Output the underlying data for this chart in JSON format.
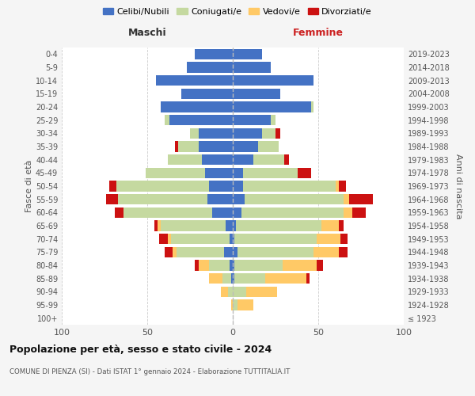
{
  "age_groups": [
    "100+",
    "95-99",
    "90-94",
    "85-89",
    "80-84",
    "75-79",
    "70-74",
    "65-69",
    "60-64",
    "55-59",
    "50-54",
    "45-49",
    "40-44",
    "35-39",
    "30-34",
    "25-29",
    "20-24",
    "15-19",
    "10-14",
    "5-9",
    "0-4"
  ],
  "birth_years": [
    "≤ 1923",
    "1924-1928",
    "1929-1933",
    "1934-1938",
    "1939-1943",
    "1944-1948",
    "1949-1953",
    "1954-1958",
    "1959-1963",
    "1964-1968",
    "1969-1973",
    "1974-1978",
    "1979-1983",
    "1984-1988",
    "1989-1993",
    "1994-1998",
    "1999-2003",
    "2004-2008",
    "2009-2013",
    "2014-2018",
    "2019-2023"
  ],
  "colors": {
    "celibi": "#4472c4",
    "coniugati": "#c5d9a0",
    "vedovi": "#ffc966",
    "divorziati": "#cc1111"
  },
  "maschi": {
    "celibi": [
      0,
      0,
      0,
      1,
      2,
      5,
      2,
      4,
      12,
      15,
      14,
      16,
      18,
      20,
      20,
      37,
      42,
      30,
      45,
      27,
      22
    ],
    "coniugati": [
      0,
      0,
      3,
      5,
      12,
      28,
      34,
      38,
      52,
      52,
      54,
      35,
      20,
      12,
      5,
      3,
      0,
      0,
      0,
      0,
      0
    ],
    "vedovi": [
      0,
      1,
      4,
      8,
      6,
      2,
      2,
      2,
      0,
      0,
      0,
      0,
      0,
      0,
      0,
      0,
      0,
      0,
      0,
      0,
      0
    ],
    "divorziati": [
      0,
      0,
      0,
      0,
      2,
      5,
      5,
      2,
      5,
      7,
      4,
      0,
      0,
      2,
      0,
      0,
      0,
      0,
      0,
      0,
      0
    ]
  },
  "femmine": {
    "nubili": [
      0,
      0,
      0,
      1,
      1,
      3,
      1,
      2,
      5,
      7,
      6,
      6,
      12,
      15,
      17,
      22,
      46,
      28,
      47,
      22,
      17
    ],
    "coniugate": [
      0,
      3,
      8,
      18,
      28,
      44,
      48,
      50,
      60,
      58,
      54,
      32,
      18,
      12,
      8,
      3,
      1,
      0,
      0,
      0,
      0
    ],
    "vedove": [
      0,
      9,
      18,
      24,
      20,
      15,
      14,
      10,
      5,
      3,
      2,
      0,
      0,
      0,
      0,
      0,
      0,
      0,
      0,
      0,
      0
    ],
    "divorziate": [
      0,
      0,
      0,
      2,
      4,
      5,
      4,
      3,
      8,
      14,
      4,
      8,
      3,
      0,
      3,
      0,
      0,
      0,
      0,
      0,
      0
    ]
  },
  "xlim": 100,
  "title": "Popolazione per età, sesso e stato civile - 2024",
  "subtitle": "COMUNE DI PIENZA (SI) - Dati ISTAT 1° gennaio 2024 - Elaborazione TUTTITALIA.IT",
  "xlabel_left": "Maschi",
  "xlabel_right": "Femmine",
  "ylabel": "Fasce di età",
  "ylabel_right": "Anni di nascita",
  "legend_labels": [
    "Celibi/Nubili",
    "Coniugati/e",
    "Vedovi/e",
    "Divorziati/e"
  ],
  "bg_color": "#f5f5f5",
  "plot_bg_color": "#ffffff"
}
